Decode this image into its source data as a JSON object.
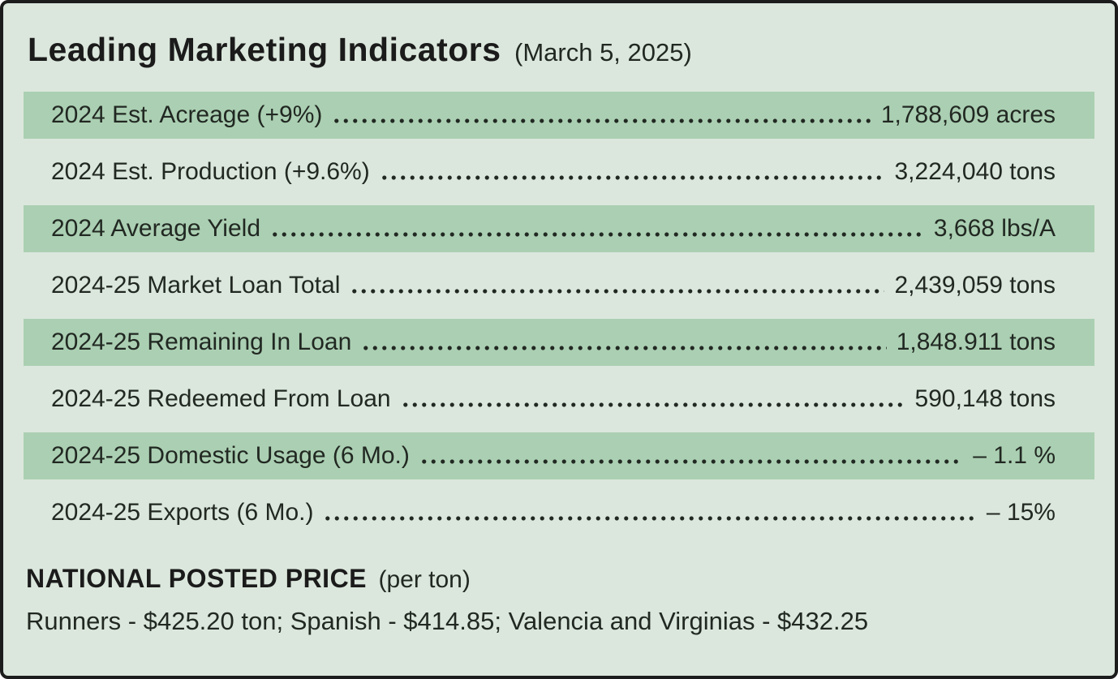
{
  "panel": {
    "title": "Leading Marketing Indicators",
    "date": "(March 5, 2025)"
  },
  "indicators": [
    {
      "label": "2024 Est. Acreage (+9%)",
      "value": "1,788,609 acres",
      "highlighted": true
    },
    {
      "label": "2024 Est. Production (+9.6%)",
      "value": "3,224,040 tons",
      "highlighted": false
    },
    {
      "label": "2024 Average Yield",
      "value": "3,668 lbs/A",
      "highlighted": true
    },
    {
      "label": "2024-25 Market Loan Total",
      "value": "2,439,059 tons",
      "highlighted": false
    },
    {
      "label": "2024-25 Remaining In Loan",
      "value": "1,848.911 tons",
      "highlighted": true
    },
    {
      "label": "2024-25 Redeemed From Loan",
      "value": "590,148 tons",
      "highlighted": false
    },
    {
      "label": "2024-25 Domestic Usage (6 Mo.)",
      "value": "– 1.1 %",
      "highlighted": true
    },
    {
      "label": "2024-25 Exports (6 Mo.)",
      "value": "– 15%",
      "highlighted": false
    }
  ],
  "national_posted_price": {
    "heading": "NATIONAL POSTED PRICE",
    "heading_suffix": "(per ton)",
    "detail": "Runners - $425.20 ton; Spanish - $414.85; Valencia and Virginias - $432.25"
  },
  "colors": {
    "background": "#dbe7dc",
    "row_highlight": "#abcfb2",
    "text": "#212822",
    "border": "#1c1c1c"
  }
}
